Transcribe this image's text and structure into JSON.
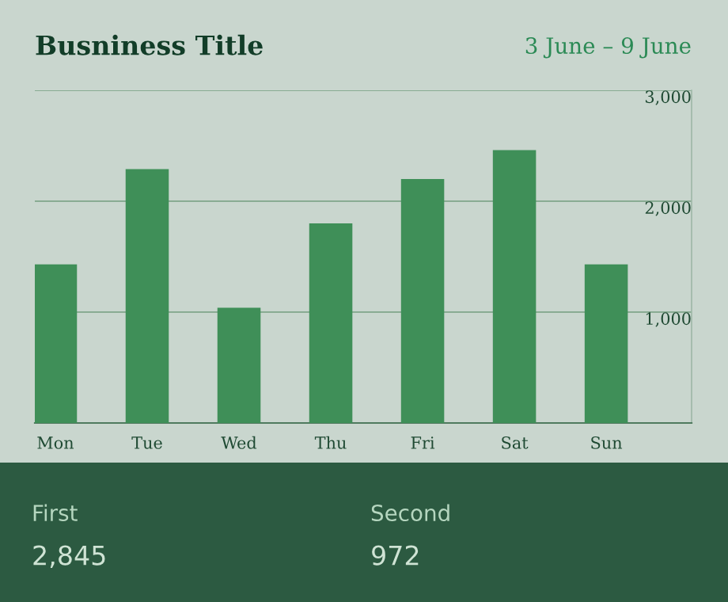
{
  "chart_data": {
    "type": "bar",
    "title": "Busniness Title",
    "subtitle": "3 June – 9 June",
    "categories": [
      "Mon",
      "Tue",
      "Wed",
      "Thu",
      "Fri",
      "Sat",
      "Sun"
    ],
    "values": [
      1430,
      2290,
      1040,
      1800,
      2200,
      2460,
      1430
    ],
    "color": "#3f8f58",
    "ylim": [
      0,
      3000
    ],
    "yticks": [
      {
        "value": 0,
        "label": null
      },
      {
        "value": 1000,
        "label": "1,000"
      },
      {
        "value": 2000,
        "label": "2,000"
      },
      {
        "value": 3000,
        "label": "3,000"
      }
    ],
    "grid": "y",
    "annotations": [
      "First",
      "2,845",
      "Second",
      "972"
    ]
  }
}
